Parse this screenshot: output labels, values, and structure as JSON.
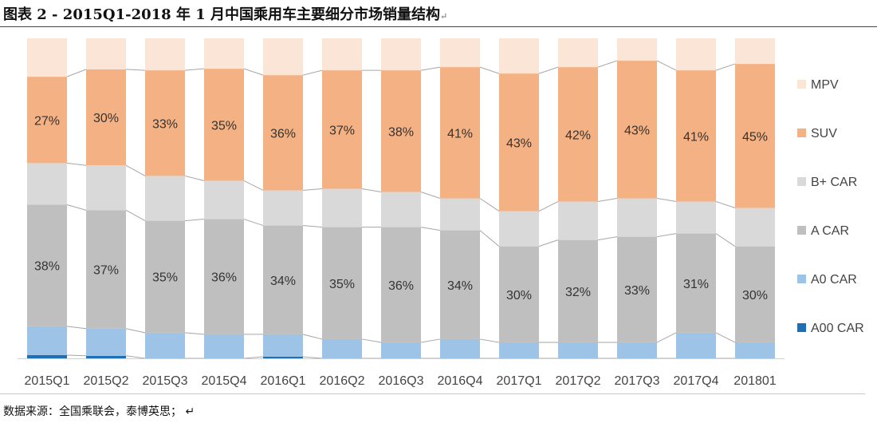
{
  "title": "图表 2 - 2015Q1-2018 年 1 月中国乘用车主要细分市场销量结构",
  "title_mark": "↵",
  "source": "数据来源：全国乘联会，泰博英思； ↵",
  "chart_data": {
    "type": "bar",
    "stacked": "percent",
    "categories": [
      "2015Q1",
      "2015Q2",
      "2015Q3",
      "2015Q4",
      "2016Q1",
      "2016Q2",
      "2016Q3",
      "2016Q4",
      "2017Q1",
      "2017Q2",
      "2017Q3",
      "2017Q4",
      "201801"
    ],
    "series": [
      {
        "name": "A00 CAR",
        "color": "#1f6fb4",
        "values": [
          1,
          0.8,
          0,
          0,
          0.5,
          0,
          0,
          0,
          0,
          0,
          0,
          0,
          0
        ]
      },
      {
        "name": "A0 CAR",
        "color": "#9dc3e6",
        "values": [
          9,
          8.5,
          8,
          7.5,
          7,
          6,
          5,
          6,
          5,
          5,
          5,
          8,
          5
        ]
      },
      {
        "name": "A CAR",
        "color": "#bfbfbf",
        "values": [
          38,
          37,
          35,
          36,
          34,
          35,
          36,
          34,
          30,
          32,
          33,
          31,
          30
        ]
      },
      {
        "name": "B+ CAR",
        "color": "#d9d9d9",
        "values": [
          13,
          14,
          14,
          12,
          11,
          12,
          11,
          10,
          11,
          12,
          12,
          10,
          12
        ]
      },
      {
        "name": "SUV",
        "color": "#f4b183",
        "values": [
          27,
          30,
          33,
          35,
          36,
          37,
          38,
          41,
          43,
          42,
          43,
          41,
          45
        ]
      },
      {
        "name": "MPV",
        "color": "#fbe5d6",
        "values": [
          12,
          9.7,
          10,
          9.5,
          11.5,
          10,
          10,
          9,
          11,
          9,
          7,
          10,
          8
        ]
      }
    ],
    "labeled_series": [
      "A CAR",
      "SUV"
    ],
    "connector_lines": true,
    "ylim": [
      0,
      100
    ],
    "grid": false,
    "legend_position": "right",
    "legend_order": [
      "MPV",
      "SUV",
      "B+ CAR",
      "A CAR",
      "A0 CAR",
      "A00 CAR"
    ]
  }
}
